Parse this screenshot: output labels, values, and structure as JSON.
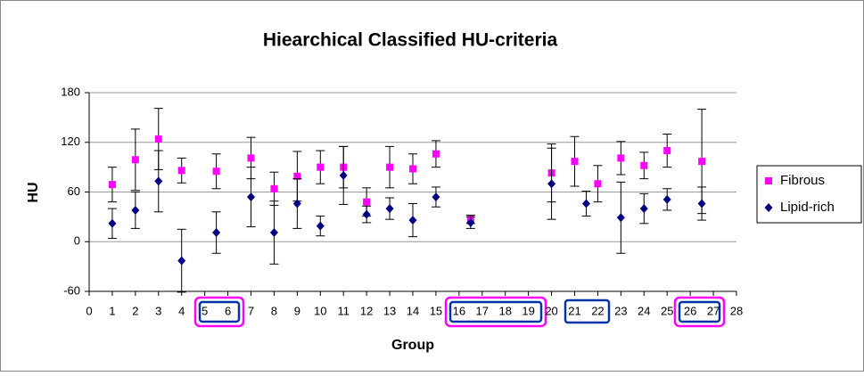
{
  "chart_data": {
    "type": "scatter",
    "title": "Hiearchical Classified HU-criteria",
    "x_label": "Group",
    "y_label": "HU",
    "xlim": [
      0,
      28
    ],
    "ylim": [
      -60,
      180
    ],
    "xticks": [
      0,
      1,
      2,
      3,
      4,
      5,
      6,
      7,
      8,
      9,
      10,
      11,
      12,
      13,
      14,
      15,
      16,
      17,
      18,
      19,
      20,
      21,
      22,
      23,
      24,
      25,
      26,
      27,
      28
    ],
    "yticks": [
      -60,
      0,
      60,
      120,
      180
    ],
    "grid": true,
    "legend": "right",
    "series": [
      {
        "name": "Fibrous",
        "color": "#ff00ff",
        "marker": "square",
        "x": [
          1,
          2,
          3,
          4,
          5.5,
          7,
          8,
          9,
          10,
          11,
          12,
          13,
          14,
          15,
          16.5,
          20,
          21,
          22,
          23,
          24,
          25,
          26.5
        ],
        "values": [
          69,
          99,
          124,
          86,
          85,
          101,
          64,
          79,
          90,
          90,
          48,
          90,
          88,
          106,
          27,
          83,
          97,
          70,
          101,
          92,
          110,
          97
        ],
        "errors": [
          21,
          37,
          37,
          15,
          21,
          25,
          20,
          30,
          20,
          25,
          17,
          25,
          18,
          16,
          5,
          35,
          30,
          22,
          20,
          16,
          20,
          63
        ]
      },
      {
        "name": "Lipid-rich",
        "color": "#000080",
        "marker": "diamond",
        "x": [
          1,
          2,
          3,
          4,
          5.5,
          7,
          8,
          9,
          10,
          11,
          12,
          13,
          14,
          15,
          16.5,
          20,
          21.5,
          23,
          24,
          25,
          26.5
        ],
        "values": [
          22,
          38,
          73,
          -23,
          11,
          54,
          11,
          46,
          19,
          80,
          33,
          40,
          26,
          54,
          23,
          70,
          46,
          29,
          40,
          51,
          46
        ],
        "errors": [
          18,
          22,
          37,
          38,
          25,
          36,
          38,
          30,
          12,
          35,
          10,
          13,
          20,
          12,
          7,
          43,
          15,
          43,
          18,
          13,
          20
        ]
      }
    ]
  }
}
